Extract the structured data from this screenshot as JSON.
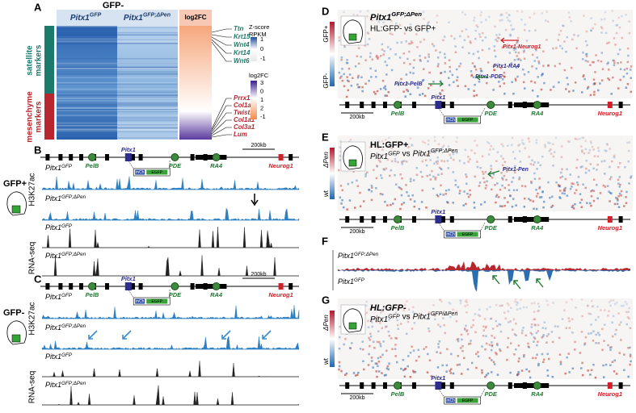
{
  "panel_a": {
    "label": "A",
    "group": "GFP-",
    "col1": {
      "base": "Pitx1",
      "sup": "GFP"
    },
    "col2": {
      "base": "Pitx1",
      "sup": "GFP;ΔPen"
    },
    "col3": "log2FC",
    "legend1": {
      "title": [
        "Z-score",
        "RPKM"
      ],
      "ticks": [
        "1",
        "0",
        "-1"
      ]
    },
    "legend2": {
      "title": "log2FC",
      "ticks": [
        "3",
        "0",
        "1",
        "2",
        "-1"
      ]
    },
    "rows": [
      [
        "satellite",
        "markers"
      ],
      [
        "mesenchyme",
        "markers"
      ]
    ],
    "genes_top": [
      "Ttn",
      "Krt15",
      "Wnt4",
      "Krt14",
      "Wnt6"
    ],
    "genes_bottom": [
      "Prrx1",
      "Col1a2",
      "Twist1",
      "Col1a1",
      "Col3a1",
      "Lum"
    ]
  },
  "panel_b": {
    "label": "B",
    "condition": "GFP+",
    "scale": "200kb",
    "loci": [
      "PelB",
      "Pitx1",
      "PDE",
      "RA4",
      "Neurog1"
    ],
    "construct": [
      "mCh",
      "EGFP"
    ],
    "assays": [
      "H3K27ac",
      "RNA-seq"
    ],
    "tracks": [
      {
        "base": "Pitx1",
        "sup": "GFP"
      },
      {
        "base": "Pitx1",
        "sup": "GFP;ΔPen"
      },
      {
        "base": "Pitx1",
        "sup": "GFP"
      },
      {
        "base": "Pitx1",
        "sup": "GFP;ΔPen"
      }
    ]
  },
  "panel_c": {
    "label": "C",
    "condition": "GFP-",
    "scale": "200kb",
    "loci": [
      "PelB",
      "Pitx1",
      "PDE",
      "RA4",
      "Neurog1"
    ],
    "construct": [
      "mCh",
      "EGFP"
    ],
    "assays": [
      "H3K27ac",
      "RNA-seq"
    ],
    "tracks": [
      {
        "base": "Pitx1",
        "sup": "GFP"
      },
      {
        "base": "Pitx1",
        "sup": "GFP;ΔPen"
      },
      {
        "base": "Pitx1",
        "sup": "GFP"
      },
      {
        "base": "Pitx1",
        "sup": "GFP;ΔPen"
      }
    ]
  },
  "panel_d": {
    "label": "D",
    "title": {
      "base": "Pitx1",
      "sup": "GFP;ΔPen"
    },
    "subtitle": "HL:GFP- vs GFP+",
    "scale_top": "GFP+",
    "scale_bottom": "GFP-",
    "annotations": [
      "Pitx1-Neurog1",
      "Pitx1-RA4",
      "Pitx1-PDE",
      "Pitx1-PelB"
    ],
    "scale": "200kb",
    "loci": [
      "PelB",
      "Pitx1",
      "PDE",
      "RA4",
      "Neurog1"
    ],
    "construct": [
      "mCh",
      "EGFP"
    ]
  },
  "panel_e": {
    "label": "E",
    "title": "HL:GFP+",
    "subtitle": [
      {
        "base": "Pitx1",
        "sup": "GFP"
      },
      "vs",
      {
        "base": "Pitx1",
        "sup": "GFP;ΔPen"
      }
    ],
    "scale_top": "ΔPen",
    "scale_bottom": "wt",
    "annotations": [
      "Pitx1-Pen"
    ],
    "scale": "200kb",
    "loci": [
      "PelB",
      "Pitx1",
      "PDE",
      "RA4",
      "Neurog1"
    ],
    "construct": [
      "mCh",
      "EGFP"
    ]
  },
  "panel_f": {
    "label": "F",
    "top": {
      "base": "Pitx1",
      "sup": "GFP;ΔPen"
    },
    "bottom": {
      "base": "Pitx1",
      "sup": "GFP"
    }
  },
  "panel_g": {
    "label": "G",
    "title": "HL:GFP-",
    "subtitle": [
      {
        "base": "Pitx1",
        "sup": "GFP"
      },
      "vs",
      {
        "base": "Pitx1",
        "sup": "GFP/ΔPen"
      }
    ],
    "scale_top": "ΔPen",
    "scale_bottom": "wt",
    "scale": "200kb",
    "loci": [
      "PelB",
      "Pitx1",
      "PDE",
      "RA4",
      "Neurog1"
    ],
    "construct": [
      "mCh",
      "EGFP"
    ]
  }
}
